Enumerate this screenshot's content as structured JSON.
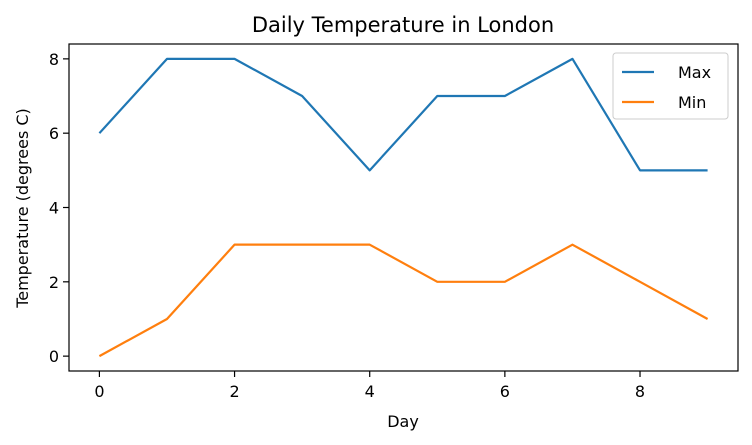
{
  "chart_data": {
    "type": "line",
    "title": "Daily Temperature in London",
    "xlabel": "Day",
    "ylabel": "Temperature (degrees C)",
    "x": [
      0,
      1,
      2,
      3,
      4,
      5,
      6,
      7,
      8,
      9
    ],
    "series": [
      {
        "name": "Max",
        "color": "#1f77b4",
        "values": [
          6,
          8,
          8,
          7,
          5,
          7,
          7,
          8,
          5,
          5
        ]
      },
      {
        "name": "Min",
        "color": "#ff7f0e",
        "values": [
          0,
          1,
          3,
          3,
          3,
          2,
          2,
          3,
          2,
          1
        ]
      }
    ],
    "xlim": [
      -0.45,
      9.45
    ],
    "ylim": [
      -0.4,
      8.4
    ],
    "xticks": [
      0,
      2,
      4,
      6,
      8
    ],
    "yticks": [
      0,
      2,
      4,
      6,
      8
    ],
    "grid": false,
    "legend_position": "top-right"
  }
}
